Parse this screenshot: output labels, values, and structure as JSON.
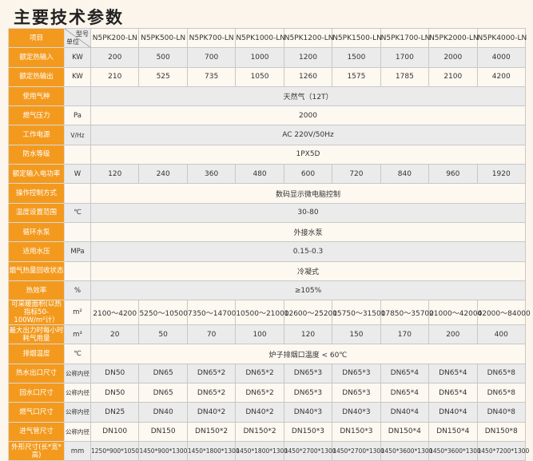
{
  "title": "主要技术参数",
  "header": {
    "item": "项目",
    "model_label": "型号",
    "unit_label": "单位",
    "models": [
      "N5PK200-LN",
      "N5PK500-LN",
      "N5PK700-LN",
      "N5PK1000-LN",
      "N5PK1200-LN",
      "N5PK1500-LN",
      "N5PK1700-LN",
      "N5PK2000-LN",
      "N5PK4000-LN"
    ]
  },
  "rows": [
    {
      "label": "额定热输入",
      "unit": "KW",
      "values": [
        "200",
        "500",
        "700",
        "1000",
        "1200",
        "1500",
        "1700",
        "2000",
        "4000"
      ]
    },
    {
      "label": "额定热输出",
      "unit": "KW",
      "values": [
        "210",
        "525",
        "735",
        "1050",
        "1260",
        "1575",
        "1785",
        "2100",
        "4200"
      ]
    },
    {
      "label": "使用气种",
      "unit": "",
      "span": "天然气（12T）"
    },
    {
      "label": "燃气压力",
      "unit": "Pa",
      "span": "2000"
    },
    {
      "label": "工作电源",
      "unit": "V/Hz",
      "span": "AC 220V/50Hz"
    },
    {
      "label": "防水等级",
      "unit": "",
      "span": "1PX5D"
    },
    {
      "label": "额定输入电功率",
      "unit": "W",
      "values": [
        "120",
        "240",
        "360",
        "480",
        "600",
        "720",
        "840",
        "960",
        "1920"
      ]
    },
    {
      "label": "操作控制方式",
      "unit": "",
      "span": "数码显示微电脑控制"
    },
    {
      "label": "温度设置范围",
      "unit": "℃",
      "span": "30-80"
    },
    {
      "label": "循环水泵",
      "unit": "",
      "span": "外接水泵"
    },
    {
      "label": "适用水压",
      "unit": "MPa",
      "span": "0.15-0.3"
    },
    {
      "label": "烟气热量回收状态",
      "unit": "",
      "span": "冷凝式"
    },
    {
      "label": "热效率",
      "unit": "%",
      "span": "≥105%"
    },
    {
      "label": "可采暖面积(以热指标50-100W/m²计）",
      "unit": "m²",
      "values": [
        "2100～4200",
        "5250～10500",
        "7350～14700",
        "10500～21000",
        "12600～25200",
        "15750～31500",
        "17850～35700",
        "21000～42000",
        "42000～84000"
      ]
    },
    {
      "label": "最大出力时每小时耗气用量",
      "unit": "m³",
      "values": [
        "20",
        "50",
        "70",
        "100",
        "120",
        "150",
        "170",
        "200",
        "400"
      ]
    },
    {
      "label": "排烟温度",
      "unit": "℃",
      "span": "炉子排烟口温度 < 60℃"
    },
    {
      "label": "热水出口尺寸",
      "unit": "公称内径",
      "values": [
        "DN50",
        "DN65",
        "DN65*2",
        "DN65*2",
        "DN65*3",
        "DN65*3",
        "DN65*4",
        "DN65*4",
        "DN65*8"
      ]
    },
    {
      "label": "回水口尺寸",
      "unit": "公称内径",
      "values": [
        "DN50",
        "DN65",
        "DN65*2",
        "DN65*2",
        "DN65*3",
        "DN65*3",
        "DN65*4",
        "DN65*4",
        "DN65*8"
      ]
    },
    {
      "label": "燃气口尺寸",
      "unit": "公称内径",
      "values": [
        "DN25",
        "DN40",
        "DN40*2",
        "DN40*2",
        "DN40*3",
        "DN40*3",
        "DN40*4",
        "DN40*4",
        "DN40*8"
      ]
    },
    {
      "label": "进气管尺寸",
      "unit": "公称内径",
      "values": [
        "DN100",
        "DN150",
        "DN150*2",
        "DN150*2",
        "DN150*3",
        "DN150*3",
        "DN150*4",
        "DN150*4",
        "DN150*8"
      ]
    },
    {
      "label": "外形尺寸(长*宽*高)",
      "unit": "mm",
      "values": [
        "1250*900*1050",
        "1450*900*1300",
        "1450*1800*1300",
        "1450*1800*1300",
        "1450*2700*1300",
        "1450*2700*1300",
        "1450*3600*1300",
        "1450*3600*1300",
        "1450*7200*1300"
      ]
    }
  ]
}
